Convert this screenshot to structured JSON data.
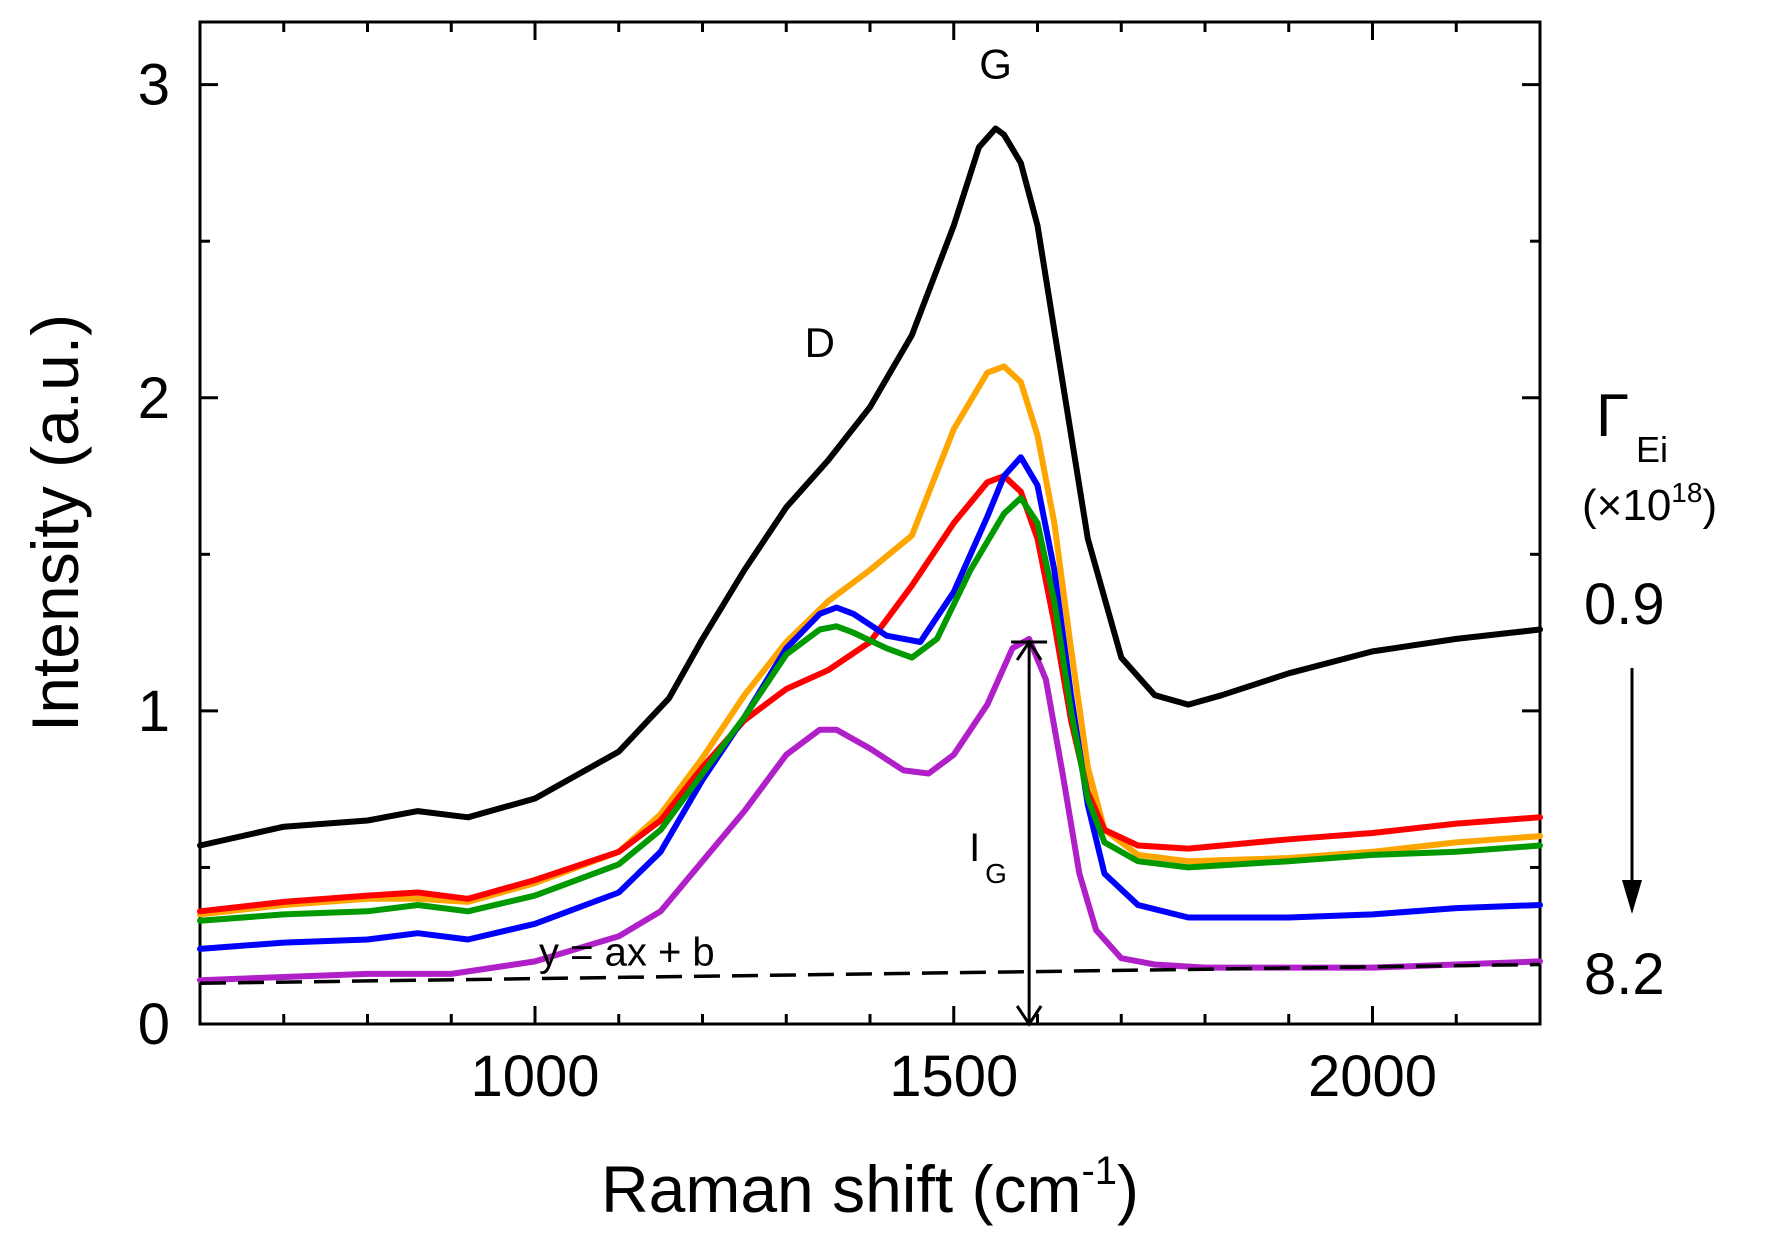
{
  "chart_data": {
    "type": "line",
    "xlabel": "Raman shift (cm",
    "xlabel_sup": "-1",
    "xlabel_close": ")",
    "ylabel": "Intensity (a.u.)",
    "xlim": [
      600,
      2200
    ],
    "ylim": [
      0,
      3.2
    ],
    "x_ticks": [
      1000,
      1500,
      2000
    ],
    "y_ticks": [
      0,
      1,
      2,
      3
    ],
    "x_tick_labels": [
      "1000",
      "1500",
      "2000"
    ],
    "y_tick_labels": [
      "0",
      "1",
      "2",
      "3"
    ],
    "grid": false,
    "series": [
      {
        "name": "0.9",
        "color": "#000000",
        "x": [
          600,
          700,
          800,
          860,
          920,
          1000,
          1100,
          1160,
          1200,
          1250,
          1300,
          1350,
          1400,
          1450,
          1500,
          1530,
          1550,
          1560,
          1580,
          1600,
          1630,
          1660,
          1700,
          1740,
          1780,
          1820,
          1900,
          2000,
          2100,
          2200
        ],
        "values": [
          0.57,
          0.63,
          0.65,
          0.68,
          0.66,
          0.72,
          0.87,
          1.04,
          1.23,
          1.45,
          1.65,
          1.8,
          1.97,
          2.2,
          2.55,
          2.8,
          2.86,
          2.84,
          2.75,
          2.55,
          2.05,
          1.55,
          1.17,
          1.05,
          1.02,
          1.05,
          1.12,
          1.19,
          1.23,
          1.26
        ]
      },
      {
        "name": "",
        "color": "#ffa500",
        "x": [
          600,
          700,
          800,
          860,
          920,
          1000,
          1100,
          1150,
          1200,
          1250,
          1300,
          1350,
          1400,
          1450,
          1500,
          1540,
          1560,
          1580,
          1600,
          1620,
          1640,
          1660,
          1680,
          1720,
          1780,
          1900,
          2000,
          2100,
          2200
        ],
        "values": [
          0.35,
          0.38,
          0.4,
          0.4,
          0.39,
          0.45,
          0.55,
          0.67,
          0.85,
          1.05,
          1.22,
          1.35,
          1.45,
          1.56,
          1.9,
          2.08,
          2.1,
          2.05,
          1.88,
          1.6,
          1.2,
          0.82,
          0.62,
          0.54,
          0.52,
          0.53,
          0.55,
          0.58,
          0.6
        ]
      },
      {
        "name": "",
        "color": "#ff0000",
        "x": [
          600,
          700,
          800,
          860,
          920,
          1000,
          1100,
          1150,
          1200,
          1250,
          1300,
          1350,
          1400,
          1450,
          1500,
          1540,
          1560,
          1580,
          1600,
          1620,
          1640,
          1660,
          1680,
          1720,
          1780,
          1900,
          2000,
          2100,
          2200
        ],
        "values": [
          0.36,
          0.39,
          0.41,
          0.42,
          0.4,
          0.46,
          0.55,
          0.65,
          0.82,
          0.97,
          1.07,
          1.13,
          1.22,
          1.4,
          1.6,
          1.73,
          1.75,
          1.7,
          1.55,
          1.28,
          0.97,
          0.74,
          0.62,
          0.57,
          0.56,
          0.59,
          0.61,
          0.64,
          0.66
        ]
      },
      {
        "name": "",
        "color": "#0000ff",
        "x": [
          600,
          700,
          800,
          860,
          920,
          1000,
          1100,
          1150,
          1200,
          1250,
          1300,
          1340,
          1360,
          1380,
          1420,
          1460,
          1500,
          1540,
          1560,
          1580,
          1600,
          1620,
          1640,
          1660,
          1680,
          1720,
          1780,
          1900,
          2000,
          2100,
          2200
        ],
        "values": [
          0.24,
          0.26,
          0.27,
          0.29,
          0.27,
          0.32,
          0.42,
          0.55,
          0.78,
          0.98,
          1.2,
          1.31,
          1.33,
          1.31,
          1.24,
          1.22,
          1.38,
          1.62,
          1.75,
          1.81,
          1.72,
          1.45,
          1.05,
          0.7,
          0.48,
          0.38,
          0.34,
          0.34,
          0.35,
          0.37,
          0.38
        ]
      },
      {
        "name": "",
        "color": "#009900",
        "x": [
          600,
          700,
          800,
          860,
          920,
          1000,
          1100,
          1150,
          1200,
          1250,
          1300,
          1340,
          1360,
          1380,
          1420,
          1450,
          1480,
          1520,
          1560,
          1580,
          1600,
          1620,
          1640,
          1660,
          1680,
          1720,
          1780,
          1900,
          2000,
          2100,
          2200
        ],
        "values": [
          0.33,
          0.35,
          0.36,
          0.38,
          0.36,
          0.41,
          0.51,
          0.62,
          0.8,
          0.98,
          1.18,
          1.26,
          1.27,
          1.25,
          1.2,
          1.17,
          1.23,
          1.45,
          1.63,
          1.68,
          1.6,
          1.35,
          1.0,
          0.72,
          0.58,
          0.52,
          0.5,
          0.52,
          0.54,
          0.55,
          0.57
        ]
      },
      {
        "name": "8.2",
        "color": "#b020c8",
        "x": [
          600,
          700,
          800,
          900,
          1000,
          1100,
          1150,
          1200,
          1250,
          1300,
          1340,
          1360,
          1400,
          1440,
          1470,
          1500,
          1540,
          1570,
          1590,
          1610,
          1630,
          1650,
          1670,
          1700,
          1740,
          1800,
          1900,
          2000,
          2100,
          2200
        ],
        "values": [
          0.14,
          0.15,
          0.16,
          0.16,
          0.2,
          0.28,
          0.36,
          0.52,
          0.68,
          0.86,
          0.94,
          0.94,
          0.88,
          0.81,
          0.8,
          0.86,
          1.02,
          1.2,
          1.23,
          1.1,
          0.8,
          0.48,
          0.3,
          0.21,
          0.19,
          0.18,
          0.18,
          0.18,
          0.19,
          0.2
        ]
      }
    ],
    "baseline": {
      "label": "y = ax + b",
      "x": [
        600,
        2200
      ],
      "values": [
        0.13,
        0.19
      ]
    },
    "peak_annotations": [
      {
        "label": "D",
        "x": 1340,
        "y": 2.13
      },
      {
        "label": "G",
        "x": 1550,
        "y": 3.02
      }
    ],
    "intensity_arrow": {
      "label": "I",
      "sub": "G",
      "x": 1590,
      "y_top": 1.22,
      "y_bottom": 0.0
    },
    "legend": {
      "symbol": "Γ",
      "subscript": "Ei",
      "unit_prefix": "(×10",
      "unit_sup": "18",
      "unit_suffix": ")",
      "top_value": "0.9",
      "bottom_value": "8.2"
    }
  }
}
